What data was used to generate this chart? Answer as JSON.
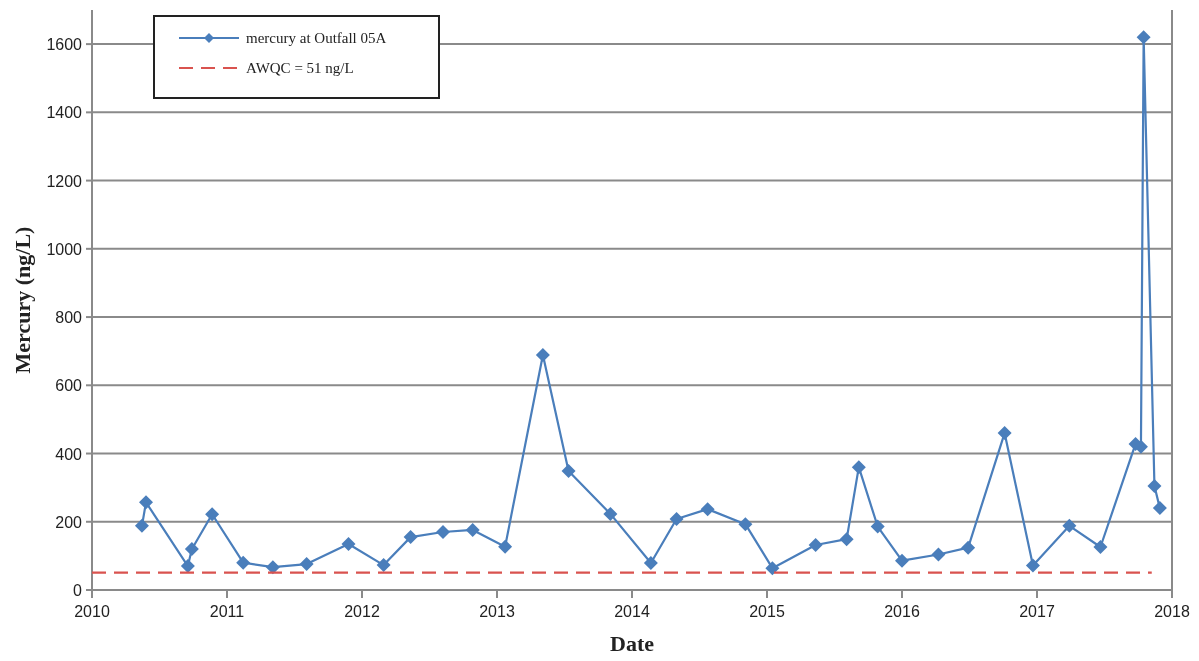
{
  "chart_data": {
    "type": "line",
    "xlabel": "Date",
    "ylabel": "Mercury (ng/L)",
    "xlim": [
      2010,
      2018
    ],
    "xticks": [
      2010,
      2011,
      2012,
      2013,
      2014,
      2015,
      2016,
      2017,
      2018
    ],
    "ylim": [
      0,
      1700
    ],
    "yticks": [
      0,
      200,
      400,
      600,
      800,
      1000,
      1200,
      1400,
      1600
    ],
    "grid": "y",
    "legend": "top left",
    "series": [
      {
        "name": "mercury at Outfall 05A",
        "color": "#4a7ebb",
        "marker": "diamond",
        "line_style": "solid",
        "x": [
          2010.37,
          2010.4,
          2010.71,
          2010.74,
          2010.89,
          2011.12,
          2011.34,
          2011.59,
          2011.9,
          2012.16,
          2012.36,
          2012.6,
          2012.82,
          2013.06,
          2013.34,
          2013.53,
          2013.84,
          2014.14,
          2014.33,
          2014.56,
          2014.84,
          2015.04,
          2015.36,
          2015.59,
          2015.68,
          2015.82,
          2016.0,
          2016.27,
          2016.49,
          2016.76,
          2016.97,
          2017.24,
          2017.47,
          2017.73,
          2017.77,
          2017.79,
          2017.87,
          2017.91
        ],
        "values": [
          188,
          257,
          70,
          120,
          222,
          80,
          67,
          76,
          135,
          73,
          155,
          170,
          176,
          127,
          689,
          349,
          223,
          79,
          208,
          237,
          193,
          64,
          132,
          149,
          360,
          186,
          86,
          104,
          124,
          460,
          72,
          188,
          126,
          428,
          420,
          1620,
          305,
          240
        ]
      },
      {
        "name": "AWQC = 51 ng/L",
        "color": "#d9534f",
        "marker": "none",
        "line_style": "dashed",
        "x": [
          2010,
          2017.85
        ],
        "values": [
          51,
          51
        ]
      }
    ]
  }
}
